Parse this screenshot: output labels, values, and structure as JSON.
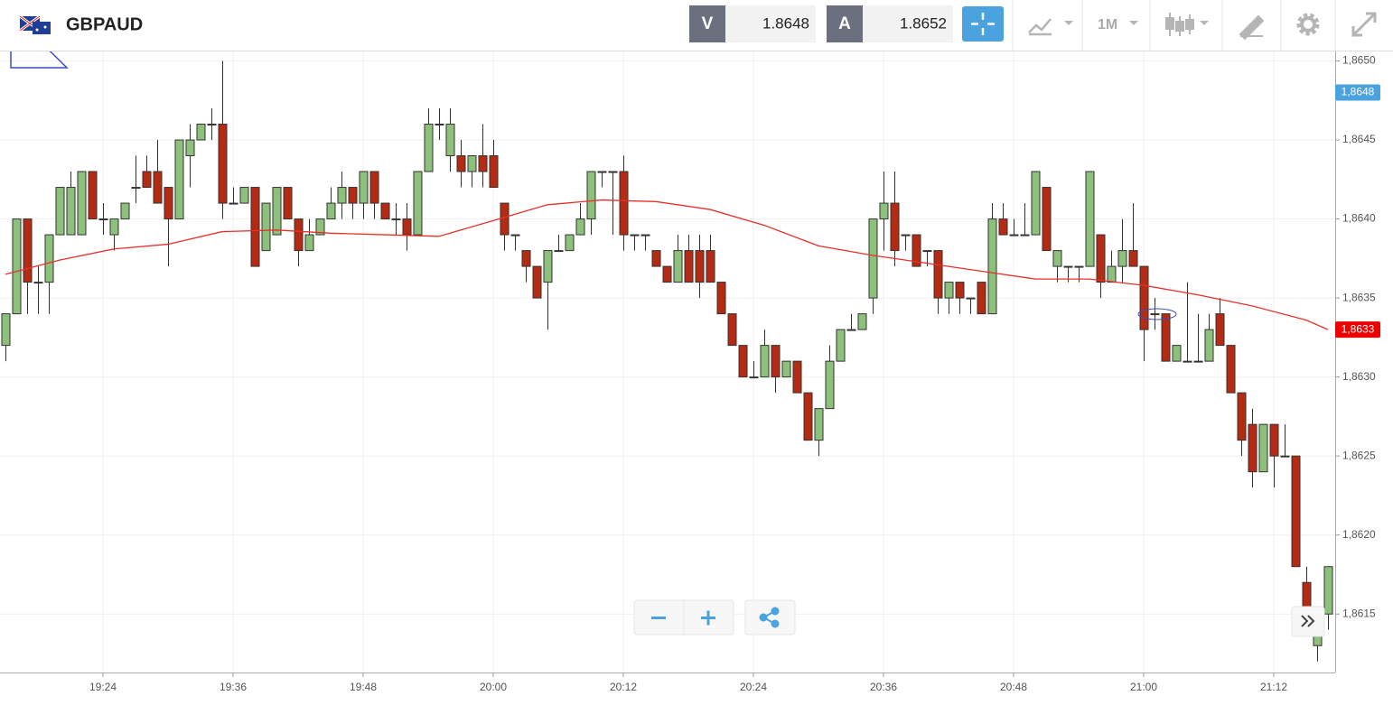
{
  "header": {
    "symbol": "GBPAUD",
    "bid_label": "V",
    "bid": 1.8648,
    "ask_label": "A",
    "ask": 1.8652,
    "timeframe": "1M"
  },
  "chart_data": {
    "type": "candlestick",
    "categories": [
      "19:15",
      "19:16",
      "19:17",
      "19:18",
      "19:19",
      "19:20",
      "19:21",
      "19:22",
      "19:23",
      "19:24",
      "19:25",
      "19:26",
      "19:27",
      "19:28",
      "19:29",
      "19:30",
      "19:31",
      "19:32",
      "19:33",
      "19:34",
      "19:35",
      "19:36",
      "19:37",
      "19:38",
      "19:39",
      "19:40",
      "19:41",
      "19:42",
      "19:43",
      "19:44",
      "19:45",
      "19:46",
      "19:47",
      "19:48",
      "19:49",
      "19:50",
      "19:51",
      "19:52",
      "19:53",
      "19:54",
      "19:55",
      "19:56",
      "19:57",
      "19:58",
      "19:59",
      "20:00",
      "20:01",
      "20:02",
      "20:03",
      "20:04",
      "20:05",
      "20:06",
      "20:07",
      "20:08",
      "20:09",
      "20:10",
      "20:11",
      "20:12",
      "20:13",
      "20:14",
      "20:15",
      "20:16",
      "20:17",
      "20:18",
      "20:19",
      "20:20",
      "20:21",
      "20:22",
      "20:23",
      "20:24",
      "20:25",
      "20:26",
      "20:27",
      "20:28",
      "20:29",
      "20:30",
      "20:31",
      "20:32",
      "20:33",
      "20:34",
      "20:35",
      "20:36",
      "20:37",
      "20:38",
      "20:39",
      "20:40",
      "20:41",
      "20:42",
      "20:43",
      "20:44",
      "20:45",
      "20:46",
      "20:47",
      "20:48",
      "20:49",
      "20:50",
      "20:51",
      "20:52",
      "20:53",
      "20:54",
      "20:55",
      "20:56",
      "20:57",
      "20:58",
      "20:59",
      "21:00",
      "21:01",
      "21:02",
      "21:03",
      "21:04",
      "21:05",
      "21:06",
      "21:07",
      "21:08",
      "21:09",
      "21:10",
      "21:11",
      "21:12",
      "21:13",
      "21:14",
      "21:15",
      "21:16",
      "21:17"
    ],
    "open": [
      1.8632,
      1.8634,
      1.864,
      1.8636,
      1.8636,
      1.8639,
      1.8639,
      1.8639,
      1.8643,
      1.864,
      1.8639,
      1.864,
      1.8642,
      1.8643,
      1.8643,
      1.8642,
      1.864,
      1.8644,
      1.8645,
      1.8646,
      1.8646,
      1.8641,
      1.8641,
      1.8642,
      1.8638,
      1.8639,
      1.8642,
      1.864,
      1.8638,
      1.8639,
      1.864,
      1.8641,
      1.8642,
      1.8641,
      1.8643,
      1.8641,
      1.864,
      1.864,
      1.8639,
      1.8643,
      1.8646,
      1.8644,
      1.8644,
      1.8643,
      1.8644,
      1.8644,
      1.8641,
      1.8639,
      1.8638,
      1.8637,
      1.8636,
      1.8638,
      1.8638,
      1.8639,
      1.864,
      1.8643,
      1.8643,
      1.8643,
      1.8639,
      1.8639,
      1.8638,
      1.8637,
      1.8636,
      1.8638,
      1.8638,
      1.8638,
      1.8636,
      1.8634,
      1.8632,
      1.863,
      1.863,
      1.8632,
      1.863,
      1.8631,
      1.8629,
      1.8626,
      1.8628,
      1.8631,
      1.8633,
      1.8633,
      1.8635,
      1.864,
      1.8641,
      1.8639,
      1.8639,
      1.8638,
      1.8638,
      1.8635,
      1.8636,
      1.8635,
      1.8636,
      1.8634,
      1.864,
      1.8639,
      1.8639,
      1.8639,
      1.8642,
      1.8637,
      1.8637,
      1.8637,
      1.8637,
      1.8639,
      1.8636,
      1.8637,
      1.8638,
      1.8637,
      1.8634,
      1.8634,
      1.8631,
      1.8631,
      1.8631,
      1.8631,
      1.8634,
      1.8632,
      1.8629,
      1.8627,
      1.8624,
      1.8627,
      1.8625,
      1.8625,
      1.8617,
      1.8613,
      1.8615
    ],
    "high": [
      1.8634,
      1.864,
      1.864,
      1.8637,
      1.8639,
      1.8642,
      1.8643,
      1.8643,
      1.8643,
      1.8641,
      1.864,
      1.8641,
      1.8644,
      1.8644,
      1.8645,
      1.8642,
      1.8645,
      1.8646,
      1.8646,
      1.8647,
      1.865,
      1.8642,
      1.8642,
      1.8642,
      1.8641,
      1.8642,
      1.8642,
      1.864,
      1.864,
      1.864,
      1.8642,
      1.8643,
      1.8642,
      1.8643,
      1.8643,
      1.8641,
      1.8641,
      1.8641,
      1.8643,
      1.8647,
      1.8647,
      1.8647,
      1.8645,
      1.8644,
      1.8646,
      1.8645,
      1.8641,
      1.8639,
      1.8638,
      1.8637,
      1.8638,
      1.8639,
      1.8639,
      1.8641,
      1.8643,
      1.8643,
      1.8643,
      1.8644,
      1.8639,
      1.8639,
      1.8638,
      1.8637,
      1.8639,
      1.8639,
      1.8639,
      1.8639,
      1.8636,
      1.8634,
      1.8632,
      1.8631,
      1.8633,
      1.8632,
      1.8631,
      1.8631,
      1.8629,
      1.8628,
      1.8632,
      1.8633,
      1.8634,
      1.8634,
      1.864,
      1.8643,
      1.8643,
      1.8639,
      1.8639,
      1.8638,
      1.8638,
      1.8636,
      1.8636,
      1.8635,
      1.8636,
      1.8641,
      1.8641,
      1.864,
      1.8641,
      1.8643,
      1.8642,
      1.8638,
      1.8637,
      1.8637,
      1.8643,
      1.8639,
      1.8638,
      1.864,
      1.8641,
      1.8637,
      1.8635,
      1.8634,
      1.8632,
      1.8636,
      1.8634,
      1.8634,
      1.8635,
      1.8632,
      1.8629,
      1.8628,
      1.8627,
      1.8627,
      1.8627,
      1.8625,
      1.8618,
      1.8614,
      1.8618
    ],
    "low": [
      1.8631,
      1.8634,
      1.8634,
      1.8634,
      1.8634,
      1.8639,
      1.8639,
      1.8639,
      1.864,
      1.8639,
      1.8638,
      1.864,
      1.8641,
      1.8642,
      1.8641,
      1.8637,
      1.864,
      1.8642,
      1.8645,
      1.8645,
      1.864,
      1.8641,
      1.8641,
      1.8637,
      1.8638,
      1.8639,
      1.864,
      1.8637,
      1.8638,
      1.8639,
      1.864,
      1.864,
      1.864,
      1.864,
      1.864,
      1.864,
      1.8639,
      1.8638,
      1.8639,
      1.8643,
      1.8645,
      1.8643,
      1.8642,
      1.8642,
      1.8642,
      1.8642,
      1.8638,
      1.8638,
      1.8636,
      1.8635,
      1.8633,
      1.8638,
      1.8638,
      1.8639,
      1.8639,
      1.8642,
      1.8639,
      1.8638,
      1.8638,
      1.8638,
      1.8637,
      1.8636,
      1.8636,
      1.8636,
      1.8635,
      1.8636,
      1.8634,
      1.8632,
      1.863,
      1.863,
      1.863,
      1.8629,
      1.863,
      1.8629,
      1.8626,
      1.8625,
      1.8628,
      1.8631,
      1.8633,
      1.8633,
      1.8634,
      1.8638,
      1.8637,
      1.8638,
      1.8637,
      1.8637,
      1.8634,
      1.8634,
      1.8634,
      1.8634,
      1.8634,
      1.8634,
      1.8639,
      1.8639,
      1.8639,
      1.8639,
      1.8638,
      1.8636,
      1.8636,
      1.8636,
      1.8637,
      1.8635,
      1.8636,
      1.8636,
      1.8637,
      1.8631,
      1.8633,
      1.8631,
      1.8631,
      1.8631,
      1.8631,
      1.8631,
      1.8632,
      1.8629,
      1.8625,
      1.8623,
      1.8624,
      1.8623,
      1.8625,
      1.8618,
      1.8615,
      1.8612,
      1.8614
    ],
    "close": [
      1.8634,
      1.864,
      1.8636,
      1.8636,
      1.8639,
      1.8642,
      1.8642,
      1.8643,
      1.864,
      1.864,
      1.864,
      1.8641,
      1.8642,
      1.8642,
      1.8641,
      1.864,
      1.8645,
      1.8645,
      1.8646,
      1.8646,
      1.8641,
      1.8641,
      1.8642,
      1.8637,
      1.8641,
      1.8642,
      1.864,
      1.8638,
      1.8639,
      1.864,
      1.8641,
      1.8642,
      1.8641,
      1.8643,
      1.8641,
      1.864,
      1.864,
      1.8639,
      1.8643,
      1.8646,
      1.8646,
      1.8646,
      1.8643,
      1.8644,
      1.8643,
      1.8642,
      1.8639,
      1.8639,
      1.8637,
      1.8635,
      1.8638,
      1.8638,
      1.8639,
      1.864,
      1.8643,
      1.8643,
      1.8643,
      1.8639,
      1.8639,
      1.8639,
      1.8637,
      1.8636,
      1.8638,
      1.8636,
      1.8636,
      1.8636,
      1.8634,
      1.8632,
      1.863,
      1.863,
      1.8632,
      1.863,
      1.8631,
      1.8629,
      1.8626,
      1.8628,
      1.8631,
      1.8633,
      1.8633,
      1.8634,
      1.864,
      1.8641,
      1.8638,
      1.8639,
      1.8637,
      1.8638,
      1.8635,
      1.8636,
      1.8635,
      1.8635,
      1.8634,
      1.864,
      1.8639,
      1.8639,
      1.8639,
      1.8643,
      1.8638,
      1.8638,
      1.8637,
      1.8637,
      1.8643,
      1.8636,
      1.8637,
      1.8638,
      1.8637,
      1.8633,
      1.8634,
      1.8631,
      1.8632,
      1.8631,
      1.8631,
      1.8633,
      1.8632,
      1.8629,
      1.8626,
      1.8624,
      1.8627,
      1.8625,
      1.8625,
      1.8618,
      1.8615,
      1.8614,
      1.8618
    ],
    "colors": {
      "up": "#8dc07a",
      "down": "#b52a10",
      "wick": "#333333"
    },
    "ma": {
      "color": "#e8302a",
      "x": [
        "19:15",
        "19:20",
        "19:25",
        "19:30",
        "19:35",
        "19:40",
        "19:45",
        "19:50",
        "19:55",
        "20:00",
        "20:05",
        "20:10",
        "20:15",
        "20:20",
        "20:25",
        "20:30",
        "20:35",
        "20:40",
        "20:45",
        "20:50",
        "20:55",
        "21:00",
        "21:05",
        "21:10",
        "21:15",
        "21:17"
      ],
      "values": [
        1.86365,
        1.86374,
        1.86381,
        1.86384,
        1.86392,
        1.86393,
        1.86391,
        1.8639,
        1.86389,
        1.86399,
        1.86409,
        1.86412,
        1.86411,
        1.86406,
        1.86396,
        1.86383,
        1.86377,
        1.86372,
        1.86367,
        1.86362,
        1.86362,
        1.86358,
        1.86352,
        1.86345,
        1.86336,
        1.8633
      ]
    },
    "ylim": [
      1.86113,
      1.86506
    ],
    "yticks": [
      {
        "value": 1.8615,
        "label": "1,8615"
      },
      {
        "value": 1.862,
        "label": "1,8620"
      },
      {
        "value": 1.8625,
        "label": "1,8625"
      },
      {
        "value": 1.863,
        "label": "1,8630"
      },
      {
        "value": 1.8635,
        "label": "1,8635"
      },
      {
        "value": 1.864,
        "label": "1,8640"
      },
      {
        "value": 1.8645,
        "label": "1,8645"
      },
      {
        "value": 1.865,
        "label": "1,8650"
      }
    ],
    "xticks": [
      "19:24",
      "19:36",
      "19:48",
      "20:00",
      "20:12",
      "20:24",
      "20:36",
      "20:48",
      "21:00",
      "21:12"
    ],
    "grid": true,
    "price_tags": [
      {
        "value": 1.8648,
        "label": "1,8648",
        "color": "#4aa3df"
      },
      {
        "value": 1.8633,
        "label": "1,8633",
        "color": "#ee0000"
      }
    ]
  }
}
